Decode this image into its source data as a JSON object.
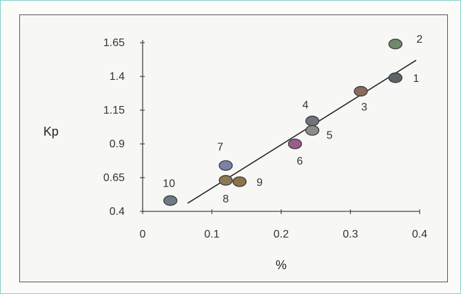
{
  "chart_data": {
    "type": "scatter",
    "title": "",
    "xlabel": "%",
    "ylabel": "Kp",
    "xlim": [
      0,
      0.4
    ],
    "ylim": [
      0.4,
      1.65
    ],
    "x_ticks": [
      "0",
      "0.1",
      "0.2",
      "0.3",
      "0.4"
    ],
    "y_ticks": [
      "0.4",
      "0.65",
      "0.9",
      "1.15",
      "1.4",
      "1.65"
    ],
    "grid": false,
    "points": [
      {
        "label": "1",
        "x": 0.365,
        "y": 1.39,
        "color": "#5c6468"
      },
      {
        "label": "2",
        "x": 0.365,
        "y": 1.64,
        "color": "#6e8a6c"
      },
      {
        "label": "3",
        "x": 0.315,
        "y": 1.29,
        "color": "#8a6a5e"
      },
      {
        "label": "4",
        "x": 0.245,
        "y": 1.07,
        "color": "#6e747a"
      },
      {
        "label": "5",
        "x": 0.245,
        "y": 1.0,
        "color": "#8a8d88"
      },
      {
        "label": "6",
        "x": 0.22,
        "y": 0.9,
        "color": "#9a5c8a"
      },
      {
        "label": "7",
        "x": 0.12,
        "y": 0.74,
        "color": "#7a82a6"
      },
      {
        "label": "8",
        "x": 0.12,
        "y": 0.63,
        "color": "#8a7a52"
      },
      {
        "label": "9",
        "x": 0.14,
        "y": 0.62,
        "color": "#8a7448"
      },
      {
        "label": "10",
        "x": 0.04,
        "y": 0.48,
        "color": "#6e7a86"
      }
    ],
    "trendline": {
      "x": [
        0.065,
        0.395
      ],
      "y": [
        0.46,
        1.52
      ]
    }
  }
}
